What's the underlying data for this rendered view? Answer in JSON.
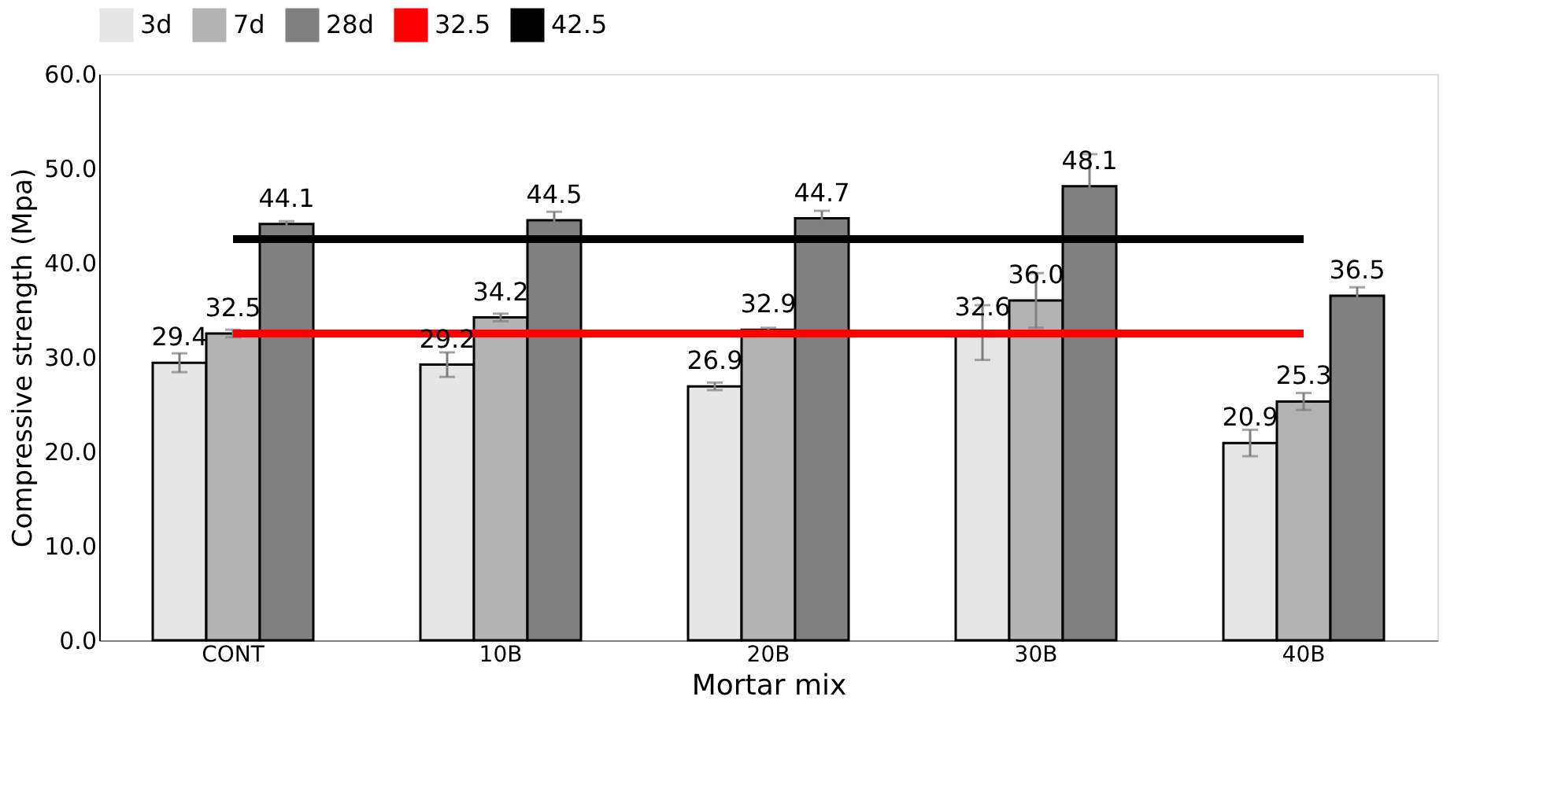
{
  "chart_data": {
    "type": "bar",
    "xlabel": "Mortar mix",
    "ylabel": "Compressive strength (Mpa)",
    "categories": [
      "CONT",
      "10B",
      "20B",
      "30B",
      "40B"
    ],
    "series": [
      {
        "name": "3d",
        "color": "#e6e6e6",
        "values": [
          29.4,
          29.2,
          26.9,
          32.6,
          20.9
        ],
        "errors": [
          1.0,
          1.3,
          0.4,
          2.9,
          1.4
        ],
        "value_labels": [
          "29.4",
          "29.2",
          "26.9",
          "32.6",
          "20.9"
        ]
      },
      {
        "name": "7d",
        "color": "#b3b3b3",
        "values": [
          32.5,
          34.2,
          32.9,
          36.0,
          25.3
        ],
        "errors": [
          0.4,
          0.4,
          0.2,
          2.9,
          0.9
        ],
        "value_labels": [
          "32.5",
          "34.2",
          "32.9",
          "36.0",
          "25.3"
        ]
      },
      {
        "name": "28d",
        "color": "#808080",
        "values": [
          44.1,
          44.5,
          44.7,
          48.1,
          36.5
        ],
        "errors": [
          0.3,
          0.9,
          0.8,
          3.4,
          0.9
        ],
        "value_labels": [
          "44.1",
          "44.5",
          "44.7",
          "48.1",
          "36.5"
        ]
      },
      {
        "name": "32.5",
        "type": "line",
        "color": "#ff0000",
        "values": [
          32.5,
          32.5,
          32.5,
          32.5,
          32.5
        ]
      },
      {
        "name": "42.5",
        "type": "line",
        "color": "#000000",
        "values": [
          42.5,
          42.5,
          42.5,
          42.5,
          42.5
        ]
      }
    ],
    "ylim": [
      0,
      60
    ],
    "yticks": [
      {
        "value": 0,
        "label": "0.0"
      },
      {
        "value": 10,
        "label": "10.0"
      },
      {
        "value": 20,
        "label": "20.0"
      },
      {
        "value": 30,
        "label": "30.0"
      },
      {
        "value": 40,
        "label": "40.0"
      },
      {
        "value": 50,
        "label": "50.0"
      },
      {
        "value": 60,
        "label": "60.0"
      }
    ],
    "grid": false,
    "legend": "top",
    "marker": "none",
    "line_style": "solid"
  }
}
